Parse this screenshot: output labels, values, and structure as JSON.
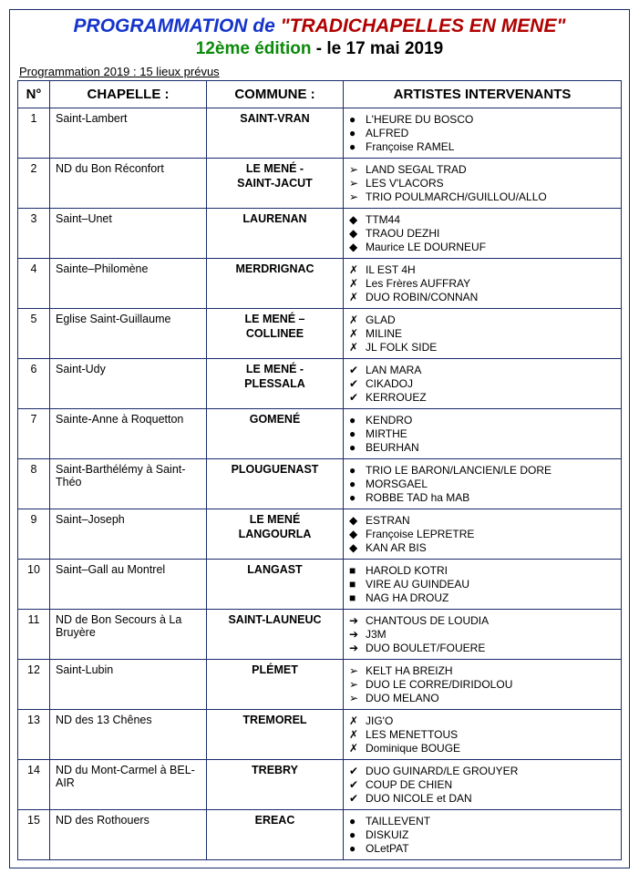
{
  "title": {
    "programmation": "PROGRAMMATION de",
    "quote_open": "\"",
    "event": "TRADICHAPELLES EN MENE",
    "quote_close": "\"",
    "edition": "12ème édition",
    "separator": " - ",
    "date": "le 17 mai 2019"
  },
  "subtitle": "Programmation 2019 : 15 lieux prévus",
  "headers": {
    "num": "N°",
    "chapelle": "CHAPELLE :",
    "commune": "COMMUNE :",
    "artistes": "ARTISTES INTERVENANTS"
  },
  "bullet_map": {
    "disc": "●",
    "chevron": "➢",
    "diamond": "◆",
    "x": "✗",
    "check": "✔",
    "square": "■",
    "arrow": "➔"
  },
  "rows": [
    {
      "num": "1",
      "chapelle": "Saint-Lambert",
      "commune": "SAINT-VRAN",
      "bullet": "disc",
      "artists": [
        "L'HEURE DU BOSCO",
        "ALFRED",
        "Françoise RAMEL"
      ]
    },
    {
      "num": "2",
      "chapelle": "ND du Bon Réconfort",
      "commune": "LE MENÉ -\nSAINT-JACUT",
      "bullet": "chevron",
      "artists": [
        "LAND SEGAL TRAD",
        "LES V'LACORS",
        "TRIO POULMARCH/GUILLOU/ALLO"
      ]
    },
    {
      "num": "3",
      "chapelle": "Saint–Unet",
      "commune": "LAURENAN",
      "bullet": "diamond",
      "artists": [
        "TTM44",
        "TRAOU DEZHI",
        "Maurice LE DOURNEUF"
      ]
    },
    {
      "num": "4",
      "chapelle": "Sainte–Philomène",
      "commune": "MERDRIGNAC",
      "bullet": "x",
      "artists": [
        "IL EST 4H",
        "Les Frères AUFFRAY",
        "DUO ROBIN/CONNAN"
      ]
    },
    {
      "num": "5",
      "chapelle": "Eglise Saint-Guillaume",
      "commune": "LE MENÉ –\nCOLLINEE",
      "bullet": "x",
      "artists": [
        "GLAD",
        "MILINE",
        "JL FOLK SIDE"
      ]
    },
    {
      "num": "6",
      "chapelle": "Saint-Udy",
      "commune": "LE MENÉ -\nPLESSALA",
      "bullet": "check",
      "artists": [
        "LAN MARA",
        "CIKADOJ",
        "KERROUEZ"
      ]
    },
    {
      "num": "7",
      "chapelle": "Sainte-Anne à Roquetton",
      "commune": "GOMENÉ",
      "bullet": "disc",
      "artists": [
        "KENDRO",
        "MIRTHE",
        "BEURHAN"
      ]
    },
    {
      "num": "8",
      "chapelle": "Saint-Barthélémy à Saint-Théo",
      "commune": "PLOUGUENAST",
      "bullet": "disc",
      "artists": [
        "TRIO LE BARON/LANCIEN/LE DORE",
        "MORSGAEL",
        "ROBBE TAD ha MAB"
      ]
    },
    {
      "num": "9",
      "chapelle": "Saint–Joseph",
      "commune": "LE MENÉ\nLANGOURLA",
      "bullet": "diamond",
      "artists": [
        "ESTRAN",
        "Françoise LEPRETRE",
        "KAN AR BIS"
      ]
    },
    {
      "num": "10",
      "chapelle": "Saint–Gall au Montrel",
      "commune": "LANGAST",
      "bullet": "square",
      "artists": [
        "HAROLD KOTRI",
        "VIRE AU GUINDEAU",
        "NAG HA DROUZ"
      ]
    },
    {
      "num": "11",
      "chapelle": "ND de Bon Secours à La Bruyère",
      "commune": "SAINT-LAUNEUC",
      "bullet": "arrow",
      "artists": [
        "CHANTOUS DE LOUDIA",
        "J3M",
        "DUO BOULET/FOUERE"
      ]
    },
    {
      "num": "12",
      "chapelle": "Saint-Lubin",
      "commune": "PLÉMET",
      "bullet": "chevron",
      "artists": [
        "KELT HA BREIZH",
        "DUO LE CORRE/DIRIDOLOU",
        "DUO MELANO"
      ]
    },
    {
      "num": "13",
      "chapelle": "ND des 13 Chênes",
      "commune": "TREMOREL",
      "bullet": "x",
      "artists": [
        "JIG'O",
        "LES MENETTOUS",
        "Dominique BOUGE"
      ]
    },
    {
      "num": "14",
      "chapelle": "ND du Mont-Carmel à BEL-AIR",
      "commune": "TREBRY",
      "bullet": "check",
      "artists": [
        "DUO GUINARD/LE GROUYER",
        "COUP DE CHIEN",
        "DUO NICOLE et DAN"
      ]
    },
    {
      "num": "15",
      "chapelle": "ND des Rothouers",
      "commune": "EREAC",
      "bullet": "disc",
      "artists": [
        "TAILLEVENT",
        "DISKUIZ",
        "OLetPAT"
      ]
    }
  ],
  "colors": {
    "border": "#1a2a6c",
    "title_blue": "#1434cb",
    "title_red": "#b00000",
    "title_green": "#0a8a0a",
    "text": "#000000",
    "background": "#ffffff"
  }
}
